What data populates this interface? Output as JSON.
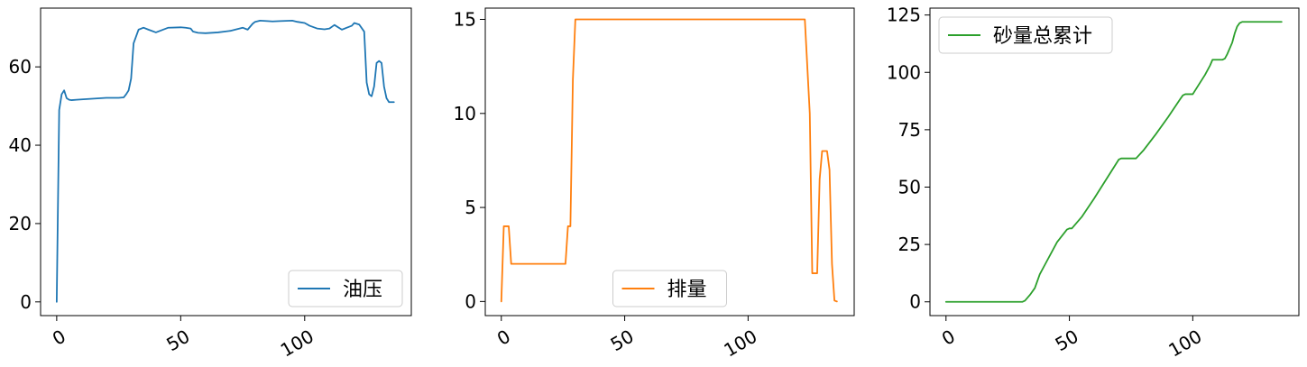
{
  "chart_data": [
    {
      "type": "line",
      "title": "",
      "xlabel": "",
      "ylabel": "",
      "xlim": [
        -6.5,
        143
      ],
      "ylim": [
        -3.5,
        75
      ],
      "xticks": [
        0,
        50,
        100
      ],
      "xtick_labels": [
        "0",
        "50",
        "100"
      ],
      "yticks": [
        0,
        20,
        40,
        60
      ],
      "ytick_labels": [
        "0",
        "20",
        "40",
        "60"
      ],
      "legend_position": "bottom-right",
      "grid": false,
      "series": [
        {
          "name": "油压",
          "color": "#1f77b4",
          "x": [
            0,
            1,
            2,
            3,
            4,
            5,
            6,
            8,
            10,
            15,
            20,
            25,
            27,
            28,
            29,
            30,
            31,
            33,
            35,
            37,
            40,
            45,
            50,
            52,
            54,
            55,
            57,
            60,
            65,
            70,
            75,
            77,
            79,
            80,
            82,
            85,
            87,
            90,
            95,
            97,
            100,
            102,
            105,
            108,
            110,
            112,
            115,
            117,
            119,
            120,
            122,
            124,
            125,
            126,
            127,
            128,
            129,
            130,
            131,
            132,
            133,
            134,
            135,
            136
          ],
          "values": [
            0,
            49,
            53,
            54,
            52,
            51.6,
            51.5,
            51.6,
            51.7,
            51.9,
            52.1,
            52.1,
            52.2,
            53,
            54,
            57,
            66,
            69.5,
            70,
            69.5,
            68.8,
            70,
            70.1,
            70,
            69.8,
            69,
            68.7,
            68.6,
            68.8,
            69.2,
            70,
            69.5,
            71,
            71.5,
            71.8,
            71.7,
            71.6,
            71.7,
            71.8,
            71.5,
            71.2,
            70.5,
            69.8,
            69.6,
            69.8,
            70.7,
            69.5,
            70,
            70.5,
            71.2,
            70.8,
            69,
            56,
            53,
            52.5,
            55,
            61,
            61.5,
            61,
            55,
            52,
            51,
            51,
            51
          ]
        }
      ]
    },
    {
      "type": "line",
      "title": "",
      "xlabel": "",
      "ylabel": "",
      "xlim": [
        -6.5,
        143
      ],
      "ylim": [
        -0.75,
        15.6
      ],
      "xticks": [
        0,
        50,
        100
      ],
      "xtick_labels": [
        "0",
        "50",
        "100"
      ],
      "yticks": [
        0,
        5,
        10,
        15
      ],
      "ytick_labels": [
        "0",
        "5",
        "10",
        "15"
      ],
      "legend_position": "bottom-center",
      "grid": false,
      "series": [
        {
          "name": "排量",
          "color": "#ff7f0e",
          "x": [
            0,
            1,
            2,
            3,
            4,
            5,
            10,
            15,
            20,
            25,
            26,
            27,
            28,
            29,
            30,
            31,
            40,
            60,
            80,
            100,
            120,
            123,
            125,
            126,
            127,
            128,
            129,
            130,
            131,
            132,
            133,
            134,
            135,
            136
          ],
          "values": [
            0,
            4,
            4,
            4,
            2,
            2,
            2,
            2,
            2,
            2,
            2,
            4,
            4,
            11.8,
            15,
            15,
            15,
            15,
            15,
            15,
            15,
            15,
            10,
            1.5,
            1.5,
            1.5,
            6.5,
            8,
            8,
            8,
            7,
            2,
            0.05,
            0
          ]
        }
      ]
    },
    {
      "type": "line",
      "title": "",
      "xlabel": "",
      "ylabel": "",
      "xlim": [
        -6.5,
        143
      ],
      "ylim": [
        -6,
        128
      ],
      "xticks": [
        0,
        50,
        100
      ],
      "xtick_labels": [
        "0",
        "50",
        "100"
      ],
      "yticks": [
        0,
        25,
        50,
        75,
        100,
        125
      ],
      "ytick_labels": [
        "0",
        "25",
        "50",
        "75",
        "100",
        "125"
      ],
      "legend_position": "top-left",
      "grid": false,
      "series": [
        {
          "name": "砂量总累计",
          "color": "#2ca02c",
          "x": [
            0,
            10,
            20,
            30,
            31,
            32,
            34,
            36,
            37,
            38,
            40,
            45,
            49,
            50,
            51,
            55,
            60,
            65,
            70,
            71,
            72,
            75,
            77,
            80,
            85,
            90,
            95,
            96,
            97,
            98,
            100,
            105,
            107,
            108,
            109,
            110,
            111,
            112,
            113,
            114,
            116,
            117,
            118,
            119,
            120,
            121,
            125,
            130,
            135,
            136
          ],
          "values": [
            0,
            0,
            0,
            0,
            0,
            0.5,
            3,
            6,
            9,
            12,
            16,
            26,
            31.5,
            32,
            32,
            37,
            45,
            53.5,
            62,
            62.5,
            62.5,
            62.5,
            62.5,
            66,
            73,
            80.5,
            88.5,
            90,
            90.5,
            90.5,
            90.5,
            99,
            103,
            105.5,
            105.5,
            105.5,
            105.5,
            105.5,
            106,
            108,
            113,
            117,
            120,
            121.5,
            122,
            122,
            122,
            122,
            122,
            122
          ]
        }
      ]
    }
  ]
}
